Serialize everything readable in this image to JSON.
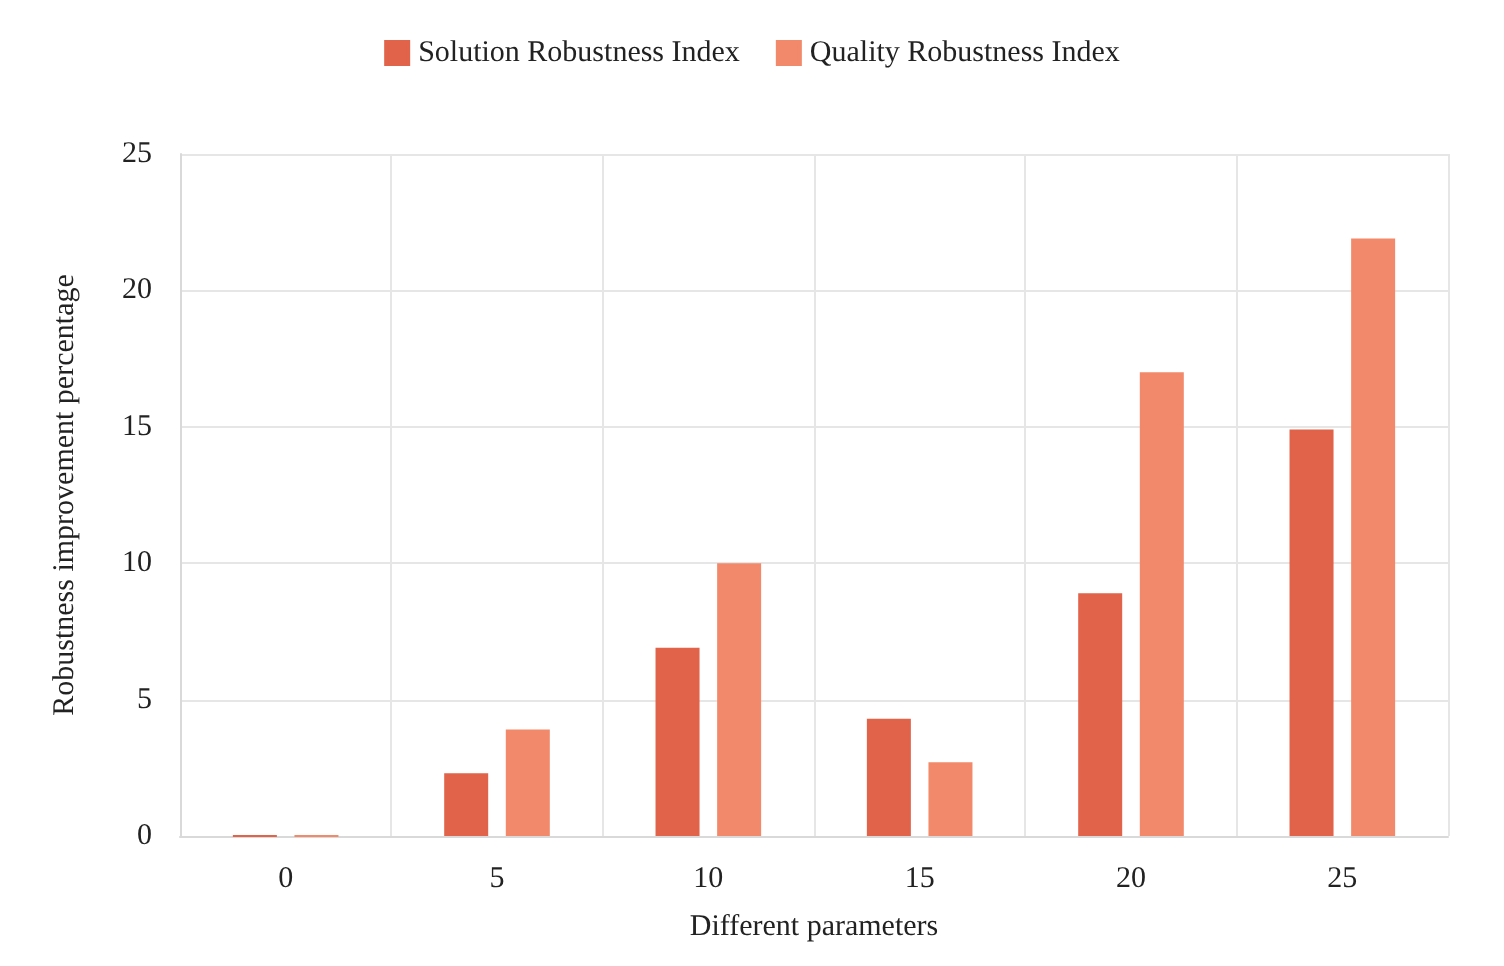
{
  "chart_data": {
    "type": "bar",
    "xlabel": "Different parameters",
    "ylabel": "Robustness improvement percentage",
    "categories": [
      "0",
      "5",
      "10",
      "15",
      "20",
      "25"
    ],
    "series": [
      {
        "name": "Solution Robustness Index",
        "color": "#e0634a",
        "values": [
          0,
          2.3,
          6.9,
          4.3,
          8.9,
          14.9
        ]
      },
      {
        "name": "Quality Robustness Index",
        "color": "#f2896a",
        "values": [
          0,
          3.9,
          10.0,
          2.7,
          17.0,
          21.9
        ]
      }
    ],
    "ylim": [
      0,
      25
    ],
    "yticks": [
      0,
      5,
      10,
      15,
      20,
      25
    ],
    "grid": true,
    "legend": "top"
  }
}
